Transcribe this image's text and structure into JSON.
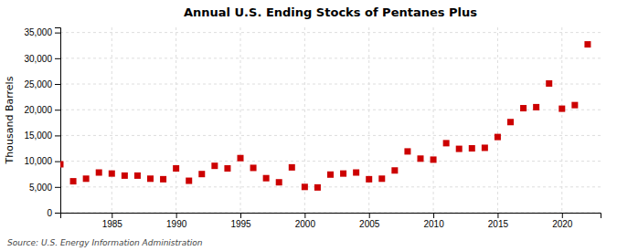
{
  "chart_data": {
    "type": "scatter",
    "title": "Annual U.S. Ending Stocks of Pentanes Plus",
    "ylabel": "Thousand Barrels",
    "annotations": [
      "Source: U.S. Energy Information Administration"
    ],
    "color": "#cc0000",
    "marker": "square",
    "grid": true,
    "xlim": [
      1981,
      2023
    ],
    "xticks": [
      1985,
      1990,
      1995,
      2000,
      2005,
      2010,
      2015,
      2020
    ],
    "ylim": [
      0,
      36000
    ],
    "yticks": [
      0,
      {
        "value": 5000,
        "label": "5,000"
      },
      {
        "value": 10000,
        "label": "10,000"
      },
      {
        "value": 15000,
        "label": "15,000"
      },
      {
        "value": 20000,
        "label": "20,000"
      },
      {
        "value": 25000,
        "label": "25,000"
      },
      {
        "value": 30000,
        "label": "30,000"
      },
      {
        "value": 35000,
        "label": "35,000"
      }
    ],
    "x": [
      1981,
      1982,
      1983,
      1984,
      1985,
      1986,
      1987,
      1988,
      1989,
      1990,
      1991,
      1992,
      1993,
      1994,
      1995,
      1996,
      1997,
      1998,
      1999,
      2000,
      2001,
      2002,
      2003,
      2004,
      2005,
      2006,
      2007,
      2008,
      2009,
      2010,
      2011,
      2012,
      2013,
      2014,
      2015,
      2016,
      2017,
      2018,
      2019,
      2020,
      2021,
      2022
    ],
    "values": [
      9400,
      6100,
      6600,
      7800,
      7600,
      7200,
      7200,
      6600,
      6500,
      8600,
      6200,
      7500,
      9100,
      8600,
      10600,
      8700,
      6700,
      5900,
      8800,
      5000,
      4900,
      7400,
      7600,
      7800,
      6500,
      6600,
      8200,
      11900,
      10500,
      10300,
      13500,
      12400,
      12500,
      12600,
      14700,
      17600,
      20300,
      20500,
      25100,
      20200,
      20900,
      32700
    ]
  }
}
